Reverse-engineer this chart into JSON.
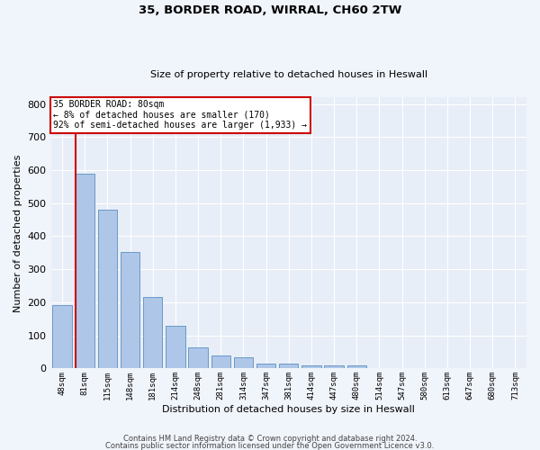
{
  "title_line1": "35, BORDER ROAD, WIRRAL, CH60 2TW",
  "title_line2": "Size of property relative to detached houses in Heswall",
  "xlabel": "Distribution of detached houses by size in Heswall",
  "ylabel": "Number of detached properties",
  "categories": [
    "48sqm",
    "81sqm",
    "115sqm",
    "148sqm",
    "181sqm",
    "214sqm",
    "248sqm",
    "281sqm",
    "314sqm",
    "347sqm",
    "381sqm",
    "414sqm",
    "447sqm",
    "480sqm",
    "514sqm",
    "547sqm",
    "580sqm",
    "613sqm",
    "647sqm",
    "680sqm",
    "713sqm"
  ],
  "values": [
    193,
    590,
    480,
    353,
    215,
    130,
    63,
    40,
    33,
    16,
    15,
    10,
    10,
    9,
    0,
    0,
    0,
    0,
    0,
    0,
    0
  ],
  "bar_color": "#aec6e8",
  "bar_edge_color": "#5a8fc2",
  "annotation_line1": "35 BORDER ROAD: 80sqm",
  "annotation_line2": "← 8% of detached houses are smaller (170)",
  "annotation_line3": "92% of semi-detached houses are larger (1,933) →",
  "annotation_box_color": "#ffffff",
  "annotation_box_edge": "#cc0000",
  "marker_line_color": "#cc0000",
  "ylim": [
    0,
    820
  ],
  "yticks": [
    0,
    100,
    200,
    300,
    400,
    500,
    600,
    700,
    800
  ],
  "background_color": "#e8eef7",
  "fig_background_color": "#f0f4fb",
  "grid_color": "#ffffff",
  "footer1": "Contains HM Land Registry data © Crown copyright and database right 2024.",
  "footer2": "Contains public sector information licensed under the Open Government Licence v3.0."
}
